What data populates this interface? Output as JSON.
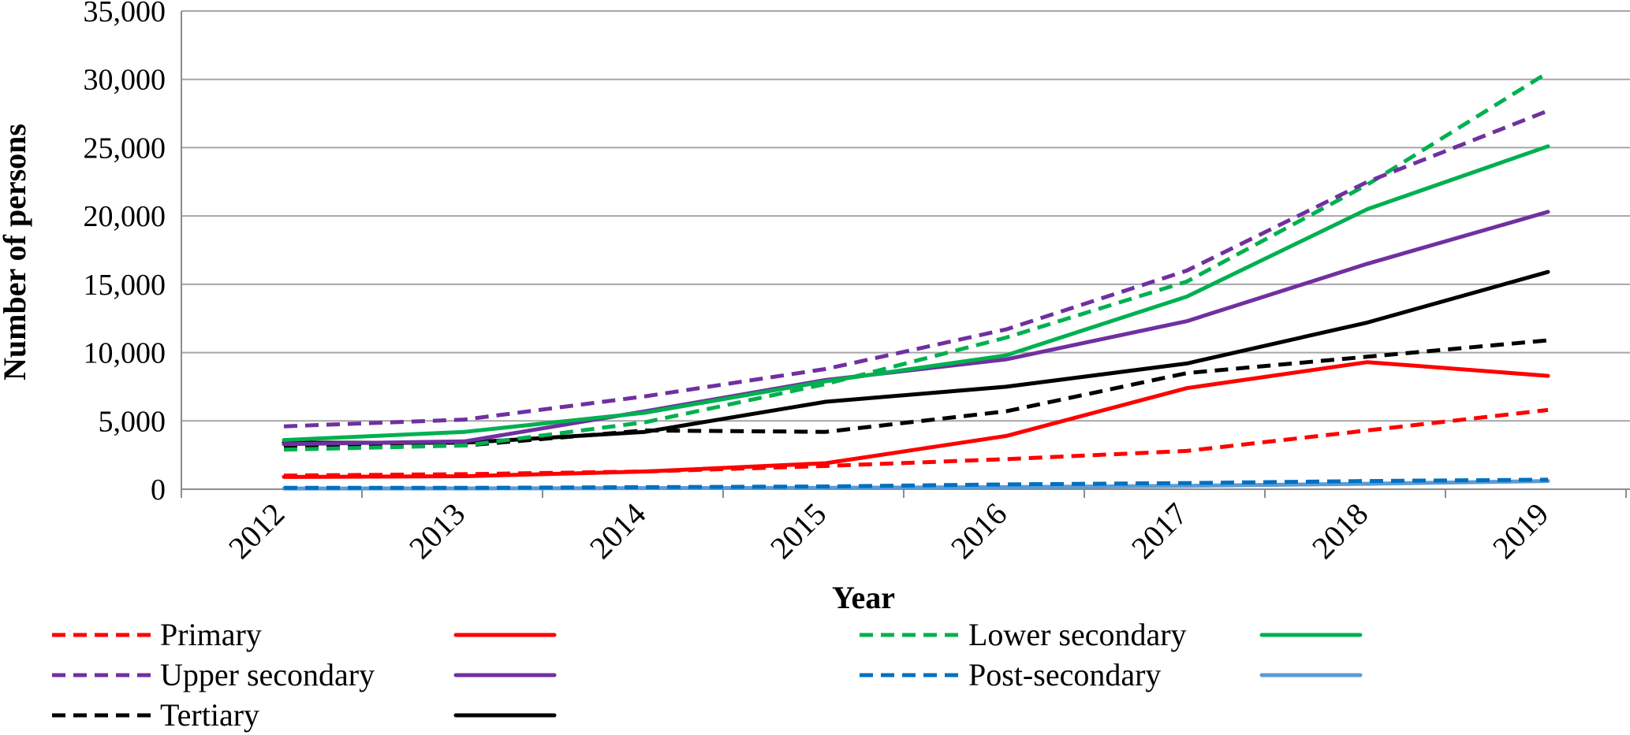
{
  "chart_data": {
    "type": "line",
    "title": "",
    "xlabel": "Year",
    "ylabel": "Number of persons",
    "ylim": [
      0,
      35000
    ],
    "y_ticks": [
      "0",
      "5,000",
      "10,000",
      "15,000",
      "20,000",
      "25,000",
      "30,000",
      "35,000"
    ],
    "categories": [
      "2012",
      "2013",
      "2014",
      "2015",
      "2016",
      "2017",
      "2018",
      "2019"
    ],
    "grid": "horizontal",
    "legend_position": "bottom",
    "series": [
      {
        "name": "Primary",
        "style": "dashed",
        "color": "#ff0000",
        "values": [
          1000,
          1100,
          1300,
          1700,
          2200,
          2800,
          4300,
          5800
        ]
      },
      {
        "name": "",
        "style": "solid",
        "color": "#ff0000",
        "values": [
          900,
          950,
          1300,
          1900,
          3900,
          7400,
          9300,
          8300
        ]
      },
      {
        "name": "Lower secondary",
        "style": "dashed",
        "color": "#00b050",
        "values": [
          2900,
          3200,
          4900,
          7700,
          11100,
          15200,
          22300,
          30500
        ]
      },
      {
        "name": "",
        "style": "solid",
        "color": "#00b050",
        "values": [
          3600,
          4200,
          5600,
          7900,
          9800,
          14100,
          20500,
          25100
        ]
      },
      {
        "name": "Upper secondary",
        "style": "dashed",
        "color": "#7030a0",
        "values": [
          4600,
          5100,
          6800,
          8800,
          11700,
          16000,
          22500,
          27700
        ]
      },
      {
        "name": "",
        "style": "solid",
        "color": "#7030a0",
        "values": [
          3300,
          3500,
          5700,
          8000,
          9500,
          12300,
          16500,
          20300
        ]
      },
      {
        "name": "Post-secondary",
        "style": "dashed",
        "color": "#0070c0",
        "values": [
          100,
          100,
          150,
          200,
          350,
          450,
          600,
          700
        ]
      },
      {
        "name": "",
        "style": "solid",
        "color": "#5b9bd5",
        "values": [
          50,
          60,
          80,
          100,
          150,
          250,
          400,
          600
        ]
      },
      {
        "name": "Tertiary",
        "style": "dashed",
        "color": "#000000",
        "values": [
          3100,
          3200,
          4300,
          4200,
          5700,
          8500,
          9700,
          10900
        ]
      },
      {
        "name": "",
        "style": "solid",
        "color": "#000000",
        "values": [
          3400,
          3400,
          4200,
          6400,
          7500,
          9200,
          12200,
          15900
        ]
      }
    ],
    "legend": [
      {
        "label": "Primary",
        "dashed_series": 0,
        "solid_series": 1
      },
      {
        "label": "Lower secondary",
        "dashed_series": 2,
        "solid_series": 3
      },
      {
        "label": "Upper secondary",
        "dashed_series": 4,
        "solid_series": 5
      },
      {
        "label": "Post-secondary",
        "dashed_series": 6,
        "solid_series": 7
      },
      {
        "label": "Tertiary",
        "dashed_series": 8,
        "solid_series": 9
      }
    ]
  }
}
